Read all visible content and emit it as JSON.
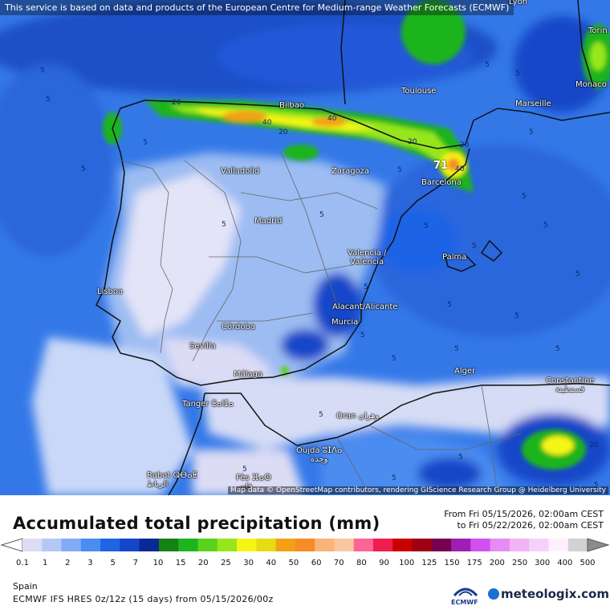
{
  "notice": "This service is based on data and products of the European Centre for Medium-range Weather Forecasts (ECMWF)",
  "attribution": "Map data © OpenStreetMap contributors, rendering GIScience Research Group @ Heidelberg University",
  "map": {
    "cities": [
      {
        "name": "Lyon"
      },
      {
        "name": "Torin"
      },
      {
        "name": "Monaco"
      },
      {
        "name": "Toulouse"
      },
      {
        "name": "Marseille"
      },
      {
        "name": "Bilbao"
      },
      {
        "name": "Zaragoza"
      },
      {
        "name": "Barcelona"
      },
      {
        "name": "Valladolid"
      },
      {
        "name": "Madrid"
      },
      {
        "name": "Valencia /\nValència"
      },
      {
        "name": "Palma"
      },
      {
        "name": "Lisboa"
      },
      {
        "name": "Alacant/Alicante"
      },
      {
        "name": "Murcia"
      },
      {
        "name": "Córdoba"
      },
      {
        "name": "Sevilla"
      },
      {
        "name": "Málaga"
      },
      {
        "name": "Alger"
      },
      {
        "name": "Constantine\nقسنطينة"
      },
      {
        "name": "Tanger ⵟⴰⵏⵊⴰ"
      },
      {
        "name": "Oran وهران"
      },
      {
        "name": "Oujda ⵓⵊⴷⴰ\nوجدة"
      },
      {
        "name": "Rabat ⵕⴱⴰⵟ\nالرباط"
      },
      {
        "name": "Fès ⴼⴰⵙ\nفاس"
      }
    ],
    "contour_labels": [
      "5",
      "5",
      "5",
      "5",
      "5",
      "5",
      "5",
      "5",
      "5",
      "5",
      "5",
      "5",
      "5",
      "5",
      "5",
      "5",
      "5",
      "5",
      "5",
      "5",
      "5",
      "5",
      "5",
      "5",
      "5",
      "5",
      "5",
      "20",
      "20",
      "20",
      "20",
      "20",
      "40",
      "40",
      "40"
    ],
    "max_value": "71"
  },
  "legend": {
    "title": "Accumulated total precipitation (mm)",
    "from": "From Fri 05/15/2026, 02:00am CEST",
    "to": "to Fri 05/22/2026, 02:00am CEST",
    "colors": [
      "#dcdcf5",
      "#b4c8f5",
      "#82aaf5",
      "#4b8cf0",
      "#1e64e6",
      "#1446c8",
      "#0a2896",
      "#148214",
      "#1eb41e",
      "#5ad21e",
      "#96e61e",
      "#f5f514",
      "#e6dc14",
      "#f5a014",
      "#f58c28",
      "#fab478",
      "#fac8a0",
      "#fa6496",
      "#f01e50",
      "#c80000",
      "#a00014",
      "#780050",
      "#a01eb4",
      "#d250f0",
      "#e68cf5",
      "#f0b4f5",
      "#f5d2fa",
      "#fff0ff",
      "#d2d2d2"
    ],
    "ticks": [
      "0.1",
      "1",
      "2",
      "3",
      "5",
      "7",
      "10",
      "15",
      "20",
      "25",
      "30",
      "40",
      "50",
      "60",
      "70",
      "80",
      "90",
      "100",
      "125",
      "150",
      "175",
      "200",
      "250",
      "300",
      "400",
      "500"
    ],
    "region": "Spain",
    "model": "ECMWF IFS HRES 0z/12z (15 days) from  05/15/2026/00z",
    "ecmwf_logo": "ECMWF",
    "brand": "meteologix.com"
  }
}
